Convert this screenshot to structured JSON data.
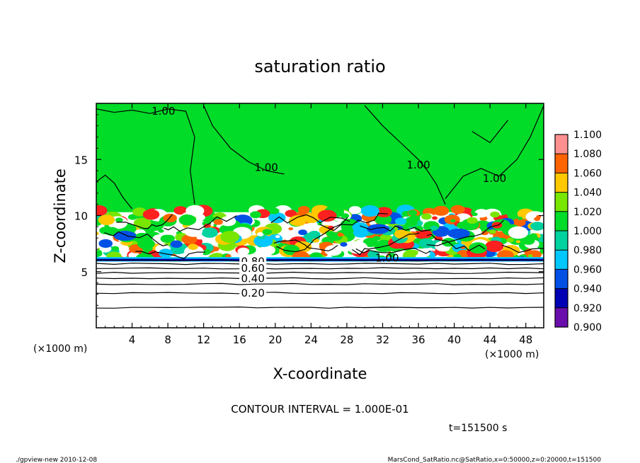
{
  "chart_data": {
    "type": "heatmap",
    "title": "saturation ratio",
    "xlabel": "X-coordinate",
    "ylabel": "Z-coordinate",
    "x_unit_left": "(×1000 m)",
    "x_unit_right": "(×1000 m)",
    "xlim": [
      0,
      50
    ],
    "ylim": [
      0,
      20
    ],
    "x_ticks": [
      4,
      8,
      12,
      16,
      20,
      24,
      28,
      32,
      36,
      40,
      44,
      48
    ],
    "y_ticks": [
      5,
      10,
      15
    ],
    "colorbar": {
      "levels": [
        0.9,
        0.92,
        0.94,
        0.96,
        0.98,
        1.0,
        1.02,
        1.04,
        1.06,
        1.08,
        1.1
      ],
      "labels": [
        "0.900",
        "0.920",
        "0.940",
        "0.960",
        "0.980",
        "1.000",
        "1.020",
        "1.040",
        "1.060",
        "1.080",
        "1.100"
      ],
      "colors": [
        "#6a0dad",
        "#0000b4",
        "#0050e6",
        "#00c8ff",
        "#00d2a0",
        "#00dc28",
        "#78e600",
        "#ffc800",
        "#ff6400",
        "#ff2020",
        "#ff9090"
      ]
    },
    "contour_labels": [
      {
        "text": "1.00",
        "x": 7.5,
        "z": 19.3
      },
      {
        "text": "1.00",
        "x": 19.0,
        "z": 14.3
      },
      {
        "text": "1.00",
        "x": 36.0,
        "z": 14.5
      },
      {
        "text": "1.00",
        "x": 44.5,
        "z": 13.3
      },
      {
        "text": "1.00",
        "x": 32.5,
        "z": 6.2
      },
      {
        "text": "0.80",
        "x": 17.5,
        "z": 5.9
      },
      {
        "text": "0.60",
        "x": 17.5,
        "z": 5.3
      },
      {
        "text": "0.40",
        "x": 17.5,
        "z": 4.4
      },
      {
        "text": "0.20",
        "x": 17.5,
        "z": 3.1
      }
    ],
    "lower_contour_levels_z": [
      6.0,
      5.7,
      5.3,
      4.9,
      4.4,
      3.9,
      3.1,
      1.8
    ],
    "grid": false,
    "legend": "right"
  },
  "footer": {
    "contour_interval": "CONTOUR INTERVAL = 1.000E-01",
    "time": "t=151500 s",
    "left_note": "./gpview-new  2010-12-08",
    "right_note": "MarsCond_SatRatio.nc@SatRatio,x=0:50000,z=0:20000,t=151500"
  }
}
